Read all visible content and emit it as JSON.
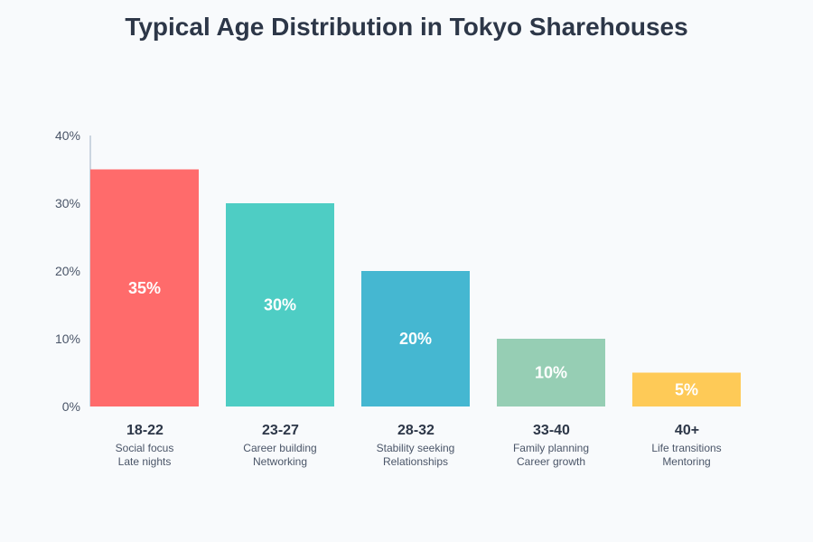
{
  "chart_data": {
    "type": "bar",
    "title": "Typical Age Distribution in Tokyo Sharehouses",
    "categories": [
      "18-22",
      "23-27",
      "28-32",
      "33-40",
      "40+"
    ],
    "descriptions": [
      [
        "Social focus",
        "Late nights"
      ],
      [
        "Career building",
        "Networking"
      ],
      [
        "Stability seeking",
        "Relationships"
      ],
      [
        "Family planning",
        "Career growth"
      ],
      [
        "Life transitions",
        "Mentoring"
      ]
    ],
    "values": [
      35,
      30,
      20,
      10,
      5
    ],
    "data_labels": [
      "35%",
      "30%",
      "20%",
      "10%",
      "5%"
    ],
    "colors": [
      "#ff6b6b",
      "#4ecdc4",
      "#45b7d1",
      "#96ceb4",
      "#feca57"
    ],
    "ylim": [
      0,
      40
    ],
    "yticks": [
      0,
      10,
      20,
      30,
      40
    ],
    "ytick_labels": [
      "0%",
      "10%",
      "20%",
      "30%",
      "40%"
    ],
    "grid": false,
    "legend": "none"
  }
}
